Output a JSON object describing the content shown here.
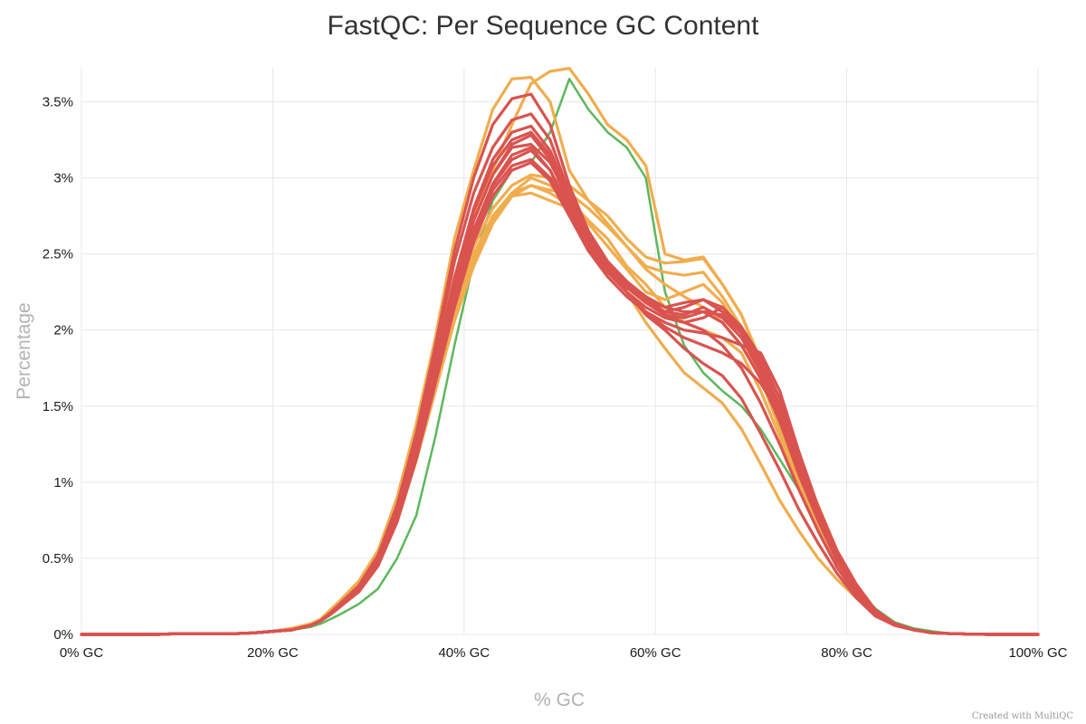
{
  "chart_data": {
    "type": "line",
    "title": "FastQC: Per Sequence GC Content",
    "xlabel": "% GC",
    "ylabel": "Percentage",
    "xlim": [
      0,
      100
    ],
    "ylim": [
      0,
      3.8
    ],
    "grid": true,
    "x_ticks": [
      0,
      20,
      40,
      60,
      80,
      100
    ],
    "x_tick_labels": [
      "0% GC",
      "20% GC",
      "40% GC",
      "60% GC",
      "80% GC",
      "100% GC"
    ],
    "y_ticks": [
      0,
      0.5,
      1,
      1.5,
      2,
      2.5,
      3,
      3.5
    ],
    "y_tick_labels": [
      "0%",
      "0.5%",
      "1%",
      "1.5%",
      "2%",
      "2.5%",
      "3%",
      "3.5%"
    ],
    "credit": "Created with MultiQC",
    "colors": {
      "pass": "#5cb85c",
      "warn": "#f0ad4e",
      "fail": "#d9534f"
    },
    "x": [
      0,
      2,
      4,
      6,
      8,
      10,
      12,
      14,
      16,
      18,
      20,
      22,
      24,
      25,
      26,
      27,
      29,
      31,
      33,
      35,
      37,
      39,
      41,
      43,
      45,
      47,
      49,
      51,
      53,
      55,
      57,
      59,
      61,
      63,
      65,
      67,
      69,
      71,
      73,
      75,
      77,
      79,
      81,
      83,
      85,
      87,
      89,
      91,
      93,
      95,
      97,
      100
    ],
    "series": [
      {
        "status": "pass",
        "values": [
          0,
          0,
          0,
          0,
          0,
          0.005,
          0.005,
          0.005,
          0.005,
          0.01,
          0.02,
          0.03,
          0.05,
          0.07,
          0.1,
          0.13,
          0.2,
          0.3,
          0.5,
          0.78,
          1.3,
          1.9,
          2.45,
          2.85,
          3.05,
          3.1,
          3.3,
          3.65,
          3.45,
          3.3,
          3.2,
          3.0,
          2.25,
          1.9,
          1.72,
          1.6,
          1.5,
          1.35,
          1.15,
          0.95,
          0.7,
          0.48,
          0.3,
          0.17,
          0.08,
          0.04,
          0.02,
          0.005,
          0.002,
          0.001,
          0,
          0
        ]
      },
      {
        "status": "warn",
        "values": [
          0,
          0,
          0,
          0,
          0,
          0.005,
          0.005,
          0.005,
          0.005,
          0.01,
          0.02,
          0.04,
          0.07,
          0.1,
          0.16,
          0.22,
          0.35,
          0.55,
          0.9,
          1.38,
          1.95,
          2.6,
          3.05,
          3.45,
          3.65,
          3.66,
          3.5,
          3.05,
          2.85,
          2.7,
          2.55,
          2.4,
          2.3,
          2.22,
          2.15,
          2.05,
          1.9,
          1.7,
          1.45,
          1.15,
          0.85,
          0.55,
          0.32,
          0.16,
          0.07,
          0.03,
          0.01,
          0.005,
          0.002,
          0,
          0,
          0
        ]
      },
      {
        "status": "warn",
        "values": [
          0,
          0,
          0,
          0,
          0,
          0.005,
          0.005,
          0.005,
          0.005,
          0.01,
          0.02,
          0.04,
          0.07,
          0.1,
          0.15,
          0.2,
          0.33,
          0.5,
          0.82,
          1.25,
          1.8,
          2.35,
          2.75,
          3.05,
          3.35,
          3.62,
          3.7,
          3.72,
          3.55,
          3.35,
          3.25,
          3.08,
          2.5,
          2.46,
          2.48,
          2.3,
          2.1,
          1.8,
          1.45,
          1.1,
          0.8,
          0.52,
          0.3,
          0.15,
          0.07,
          0.03,
          0.01,
          0.005,
          0.002,
          0,
          0,
          0
        ]
      },
      {
        "status": "warn",
        "values": [
          0,
          0,
          0,
          0,
          0,
          0.005,
          0.005,
          0.005,
          0.005,
          0.01,
          0.02,
          0.03,
          0.06,
          0.09,
          0.14,
          0.2,
          0.32,
          0.5,
          0.8,
          1.22,
          1.72,
          2.2,
          2.55,
          2.8,
          2.95,
          3.02,
          3.0,
          2.95,
          2.85,
          2.75,
          2.6,
          2.48,
          2.44,
          2.45,
          2.47,
          2.3,
          2.1,
          1.78,
          1.42,
          1.05,
          0.75,
          0.48,
          0.28,
          0.14,
          0.06,
          0.03,
          0.01,
          0.005,
          0.002,
          0,
          0,
          0
        ]
      },
      {
        "status": "warn",
        "values": [
          0,
          0,
          0,
          0,
          0,
          0.005,
          0.005,
          0.005,
          0.005,
          0.01,
          0.02,
          0.03,
          0.06,
          0.09,
          0.13,
          0.19,
          0.3,
          0.48,
          0.78,
          1.2,
          1.68,
          2.15,
          2.5,
          2.75,
          2.9,
          2.95,
          2.92,
          2.9,
          2.8,
          2.68,
          2.55,
          2.42,
          2.38,
          2.36,
          2.38,
          2.22,
          2.02,
          1.72,
          1.38,
          1.02,
          0.72,
          0.46,
          0.27,
          0.13,
          0.06,
          0.03,
          0.01,
          0.005,
          0.002,
          0,
          0,
          0
        ]
      },
      {
        "status": "warn",
        "values": [
          0,
          0,
          0,
          0,
          0,
          0.005,
          0.005,
          0.005,
          0.005,
          0.01,
          0.02,
          0.03,
          0.06,
          0.09,
          0.13,
          0.18,
          0.29,
          0.46,
          0.75,
          1.16,
          1.63,
          2.1,
          2.45,
          2.72,
          2.88,
          2.9,
          2.85,
          2.8,
          2.7,
          2.55,
          2.4,
          2.25,
          2.2,
          2.25,
          2.3,
          2.18,
          1.98,
          1.68,
          1.35,
          1.0,
          0.7,
          0.44,
          0.26,
          0.13,
          0.06,
          0.03,
          0.01,
          0.005,
          0.002,
          0,
          0,
          0
        ]
      },
      {
        "status": "warn",
        "values": [
          0,
          0,
          0,
          0,
          0,
          0.005,
          0.005,
          0.005,
          0.005,
          0.01,
          0.02,
          0.03,
          0.06,
          0.09,
          0.13,
          0.19,
          0.3,
          0.47,
          0.77,
          1.18,
          1.66,
          2.12,
          2.48,
          2.74,
          2.9,
          3.0,
          2.95,
          2.85,
          2.72,
          2.6,
          2.42,
          2.3,
          2.15,
          2.05,
          2.0,
          1.95,
          1.85,
          1.6,
          1.3,
          0.98,
          0.7,
          0.45,
          0.26,
          0.13,
          0.06,
          0.03,
          0.01,
          0.005,
          0.002,
          0,
          0,
          0
        ]
      },
      {
        "status": "warn",
        "values": [
          0,
          0,
          0,
          0,
          0,
          0.005,
          0.005,
          0.005,
          0.005,
          0.01,
          0.02,
          0.03,
          0.06,
          0.09,
          0.13,
          0.18,
          0.28,
          0.45,
          0.74,
          1.14,
          1.6,
          2.06,
          2.42,
          2.7,
          2.88,
          2.95,
          2.9,
          2.82,
          2.65,
          2.45,
          2.25,
          2.05,
          1.88,
          1.72,
          1.62,
          1.52,
          1.35,
          1.12,
          0.88,
          0.68,
          0.5,
          0.36,
          0.24,
          0.13,
          0.06,
          0.03,
          0.01,
          0.005,
          0.002,
          0,
          0,
          0
        ]
      },
      {
        "status": "fail",
        "values": [
          0,
          0,
          0,
          0,
          0,
          0.005,
          0.005,
          0.005,
          0.005,
          0.01,
          0.02,
          0.03,
          0.06,
          0.09,
          0.14,
          0.19,
          0.31,
          0.5,
          0.82,
          1.28,
          1.85,
          2.45,
          2.9,
          3.2,
          3.38,
          3.42,
          3.25,
          2.9,
          2.62,
          2.42,
          2.25,
          2.1,
          2.0,
          1.88,
          1.78,
          1.7,
          1.55,
          1.32,
          1.08,
          0.82,
          0.6,
          0.4,
          0.24,
          0.12,
          0.06,
          0.03,
          0.01,
          0.005,
          0.002,
          0,
          0,
          0
        ]
      },
      {
        "status": "fail",
        "values": [
          0,
          0,
          0,
          0,
          0,
          0.005,
          0.005,
          0.005,
          0.005,
          0.01,
          0.02,
          0.03,
          0.06,
          0.09,
          0.14,
          0.2,
          0.32,
          0.52,
          0.85,
          1.32,
          1.9,
          2.52,
          3.0,
          3.35,
          3.52,
          3.55,
          3.35,
          2.95,
          2.65,
          2.45,
          2.3,
          2.18,
          2.1,
          2.05,
          2.0,
          1.9,
          1.75,
          1.52,
          1.25,
          0.95,
          0.68,
          0.44,
          0.26,
          0.13,
          0.06,
          0.03,
          0.01,
          0.005,
          0.002,
          0,
          0,
          0
        ]
      },
      {
        "status": "fail",
        "values": [
          0,
          0,
          0,
          0,
          0,
          0.005,
          0.005,
          0.005,
          0.005,
          0.01,
          0.02,
          0.03,
          0.06,
          0.09,
          0.13,
          0.19,
          0.3,
          0.48,
          0.79,
          1.23,
          1.78,
          2.32,
          2.78,
          3.08,
          3.25,
          3.3,
          3.15,
          2.88,
          2.62,
          2.45,
          2.32,
          2.22,
          2.15,
          2.12,
          2.12,
          2.05,
          1.9,
          1.68,
          1.4,
          1.05,
          0.75,
          0.48,
          0.28,
          0.14,
          0.06,
          0.03,
          0.01,
          0.005,
          0.002,
          0,
          0,
          0
        ]
      },
      {
        "status": "fail",
        "values": [
          0,
          0,
          0,
          0,
          0,
          0.005,
          0.005,
          0.005,
          0.005,
          0.01,
          0.02,
          0.03,
          0.06,
          0.09,
          0.13,
          0.19,
          0.3,
          0.48,
          0.78,
          1.22,
          1.75,
          2.28,
          2.72,
          3.02,
          3.2,
          3.22,
          3.1,
          2.85,
          2.6,
          2.45,
          2.32,
          2.2,
          2.12,
          2.1,
          2.15,
          2.08,
          1.95,
          1.72,
          1.45,
          1.1,
          0.78,
          0.5,
          0.3,
          0.15,
          0.07,
          0.03,
          0.01,
          0.005,
          0.002,
          0,
          0,
          0
        ]
      },
      {
        "status": "fail",
        "values": [
          0,
          0,
          0,
          0,
          0,
          0.005,
          0.005,
          0.005,
          0.005,
          0.01,
          0.02,
          0.03,
          0.06,
          0.09,
          0.13,
          0.18,
          0.29,
          0.46,
          0.76,
          1.19,
          1.7,
          2.22,
          2.65,
          2.95,
          3.12,
          3.18,
          3.05,
          2.8,
          2.58,
          2.42,
          2.28,
          2.18,
          2.1,
          2.08,
          2.12,
          2.1,
          1.98,
          1.78,
          1.5,
          1.15,
          0.8,
          0.52,
          0.3,
          0.15,
          0.07,
          0.03,
          0.01,
          0.005,
          0.002,
          0,
          0,
          0
        ]
      },
      {
        "status": "fail",
        "values": [
          0,
          0,
          0,
          0,
          0,
          0.005,
          0.005,
          0.005,
          0.005,
          0.01,
          0.02,
          0.03,
          0.06,
          0.09,
          0.13,
          0.18,
          0.29,
          0.46,
          0.75,
          1.17,
          1.68,
          2.2,
          2.62,
          2.92,
          3.08,
          3.12,
          3.0,
          2.78,
          2.55,
          2.38,
          2.25,
          2.15,
          2.08,
          2.05,
          2.08,
          2.15,
          2.02,
          1.82,
          1.55,
          1.18,
          0.82,
          0.54,
          0.32,
          0.16,
          0.07,
          0.03,
          0.01,
          0.005,
          0.002,
          0,
          0,
          0
        ]
      },
      {
        "status": "fail",
        "values": [
          0,
          0,
          0,
          0,
          0,
          0.005,
          0.005,
          0.005,
          0.005,
          0.01,
          0.02,
          0.03,
          0.06,
          0.09,
          0.13,
          0.18,
          0.28,
          0.45,
          0.74,
          1.15,
          1.65,
          2.15,
          2.58,
          2.88,
          3.05,
          3.1,
          2.98,
          2.75,
          2.52,
          2.35,
          2.22,
          2.12,
          2.05,
          2.0,
          1.98,
          1.95,
          1.9,
          1.85,
          1.6,
          1.2,
          0.84,
          0.55,
          0.33,
          0.16,
          0.07,
          0.03,
          0.01,
          0.005,
          0.002,
          0,
          0,
          0
        ]
      },
      {
        "status": "fail",
        "values": [
          0,
          0,
          0,
          0,
          0,
          0.005,
          0.005,
          0.005,
          0.005,
          0.01,
          0.02,
          0.03,
          0.06,
          0.09,
          0.13,
          0.18,
          0.29,
          0.46,
          0.76,
          1.18,
          1.7,
          2.22,
          2.66,
          2.96,
          3.15,
          3.2,
          3.05,
          2.78,
          2.55,
          2.38,
          2.25,
          2.12,
          2.02,
          1.95,
          1.9,
          1.85,
          1.78,
          1.65,
          1.45,
          1.12,
          0.8,
          0.52,
          0.31,
          0.15,
          0.07,
          0.03,
          0.01,
          0.005,
          0.002,
          0,
          0,
          0
        ]
      },
      {
        "status": "fail",
        "values": [
          0,
          0,
          0,
          0,
          0,
          0.005,
          0.005,
          0.005,
          0.005,
          0.01,
          0.02,
          0.03,
          0.06,
          0.09,
          0.13,
          0.19,
          0.3,
          0.47,
          0.78,
          1.21,
          1.74,
          2.28,
          2.72,
          3.02,
          3.22,
          3.28,
          3.12,
          2.82,
          2.58,
          2.4,
          2.28,
          2.18,
          2.12,
          2.15,
          2.2,
          2.12,
          1.98,
          1.75,
          1.48,
          1.12,
          0.8,
          0.52,
          0.3,
          0.15,
          0.07,
          0.03,
          0.01,
          0.005,
          0.002,
          0,
          0,
          0
        ]
      },
      {
        "status": "fail",
        "values": [
          0,
          0,
          0,
          0,
          0,
          0.005,
          0.005,
          0.005,
          0.005,
          0.01,
          0.02,
          0.03,
          0.06,
          0.09,
          0.14,
          0.19,
          0.31,
          0.49,
          0.8,
          1.24,
          1.78,
          2.34,
          2.8,
          3.12,
          3.3,
          3.34,
          3.18,
          2.88,
          2.6,
          2.42,
          2.3,
          2.2,
          2.15,
          2.18,
          2.2,
          2.15,
          2.0,
          1.78,
          1.5,
          1.15,
          0.82,
          0.53,
          0.31,
          0.15,
          0.07,
          0.03,
          0.01,
          0.005,
          0.002,
          0,
          0,
          0
        ]
      }
    ]
  }
}
